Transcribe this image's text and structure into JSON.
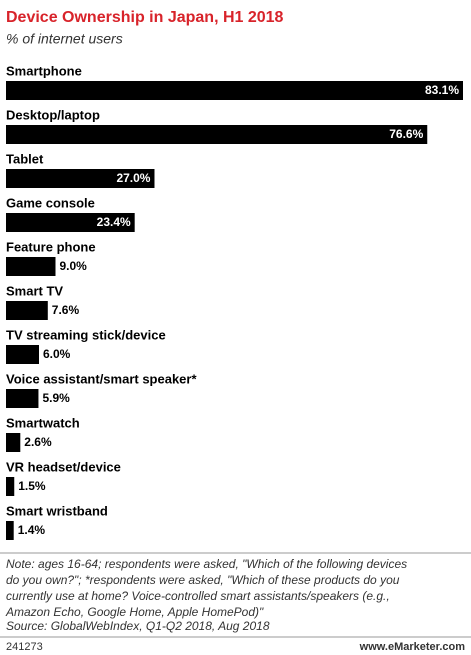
{
  "chart_data": {
    "type": "bar",
    "orientation": "horizontal",
    "title": "Device Ownership in Japan, H1 2018",
    "subtitle": "% of internet users",
    "title_color": "#d8232a",
    "color": "#000000",
    "categories": [
      "Smartphone",
      "Desktop/laptop",
      "Tablet",
      "Game console",
      "Feature phone",
      "Smart TV",
      "TV streaming stick/device",
      "Voice assistant/smart speaker*",
      "Smartwatch",
      "VR headset/device",
      "Smart wristband"
    ],
    "values": [
      83.1,
      76.6,
      27.0,
      23.4,
      9.0,
      7.6,
      6.0,
      5.9,
      2.6,
      1.5,
      1.4
    ],
    "value_labels": [
      "83.1%",
      "76.6%",
      "27.0%",
      "23.4%",
      "9.0%",
      "7.6%",
      "6.0%",
      "5.9%",
      "2.6%",
      "1.5%",
      "1.4%"
    ],
    "note": [
      "Note: ages 16-64; respondents were asked, \"Which of the following devices",
      "do you own?\"; *respondents were asked, \"Which of these products do you",
      "currently use at home? Voice-controlled smart assistants/speakers (e.g.,",
      "Amazon Echo, Google Home, Apple HomePod)\""
    ],
    "source": "Source: GlobalWebIndex, Q1-Q2 2018, Aug 2018",
    "chart_id": "241273",
    "website": "www.eMarketer.com"
  }
}
